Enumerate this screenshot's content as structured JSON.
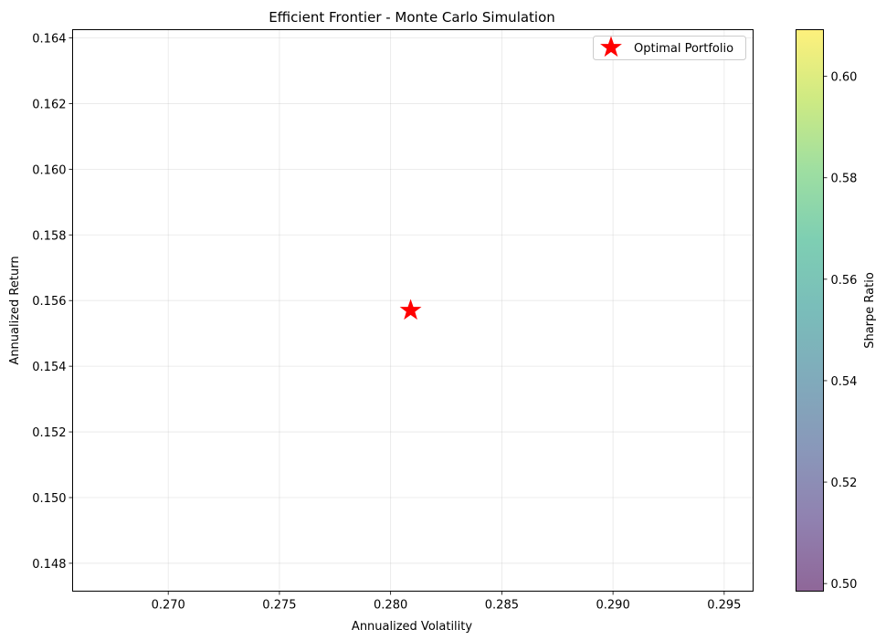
{
  "chart_data": {
    "type": "scatter",
    "title": "Efficient Frontier - Monte Carlo Simulation",
    "xlabel": "Annualized Volatility",
    "ylabel": "Annualized Return",
    "xlim": [
      0.2657,
      0.2963
    ],
    "ylim": [
      0.14715,
      0.16425
    ],
    "x_ticks": [
      0.27,
      0.275,
      0.28,
      0.285,
      0.29,
      0.295
    ],
    "x_tick_labels": [
      "0.270",
      "0.275",
      "0.280",
      "0.285",
      "0.290",
      "0.295"
    ],
    "y_ticks": [
      0.148,
      0.15,
      0.152,
      0.154,
      0.156,
      0.158,
      0.16,
      0.162,
      0.164
    ],
    "y_tick_labels": [
      "0.148",
      "0.150",
      "0.152",
      "0.154",
      "0.156",
      "0.158",
      "0.160",
      "0.162",
      "0.164"
    ],
    "grid": true,
    "legend": {
      "position": "upper right",
      "entries": [
        "Optimal Portfolio"
      ]
    },
    "series": [
      {
        "name": "Optimal Portfolio",
        "marker": "star",
        "color": "#ff0000",
        "points": [
          {
            "x": 0.2809,
            "y": 0.1557
          }
        ]
      }
    ],
    "colorbar": {
      "label": "Sharpe Ratio",
      "colormap": "viridis",
      "alpha": 0.6,
      "range": [
        0.4985,
        0.6092
      ],
      "ticks": [
        0.5,
        0.52,
        0.54,
        0.56,
        0.58,
        0.6
      ],
      "tick_labels": [
        "0.50",
        "0.52",
        "0.54",
        "0.56",
        "0.58",
        "0.60"
      ]
    }
  }
}
